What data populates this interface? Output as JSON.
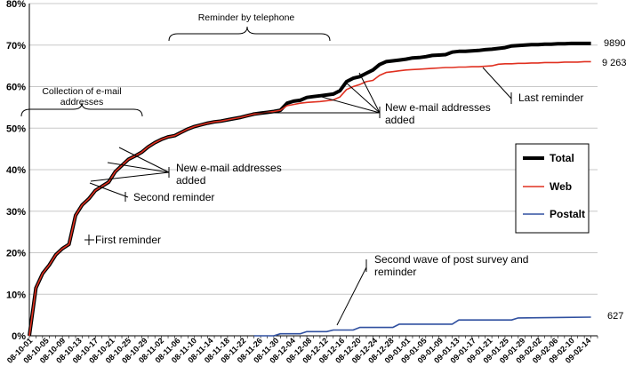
{
  "chart_data": {
    "type": "line",
    "y_ticks": [
      "0%",
      "10%",
      "20%",
      "30%",
      "40%",
      "50%",
      "60%",
      "70%",
      "80%"
    ],
    "ylim": [
      0,
      80
    ],
    "grid": true,
    "x_tick_labels": [
      "08-10-01",
      "08-10-05",
      "08-10-09",
      "08-10-13",
      "08-10-17",
      "08-10-21",
      "08-10-25",
      "08-10-29",
      "08-11-02",
      "08-11-06",
      "08-11-10",
      "08-11-14",
      "08-11-18",
      "08-11-22",
      "08-11-26",
      "08-11-30",
      "08-12-04",
      "08-12-08",
      "08-12-12",
      "08-12-16",
      "08-12-20",
      "08-12-24",
      "08-12-28",
      "09-01-01",
      "09-01-05",
      "09-01-09",
      "09-01-13",
      "09-01-17",
      "09-01-21",
      "09-01-25",
      "09-01-29",
      "09-02-02",
      "09-02-06",
      "09-02-10",
      "09-02-14"
    ],
    "legend_position": "right",
    "series": [
      {
        "name": "Total",
        "color": "#000000",
        "points": [
          [
            0,
            0
          ],
          [
            1,
            11.5
          ],
          [
            2,
            15
          ],
          [
            3,
            17
          ],
          [
            4,
            19.5
          ],
          [
            5,
            21
          ],
          [
            6,
            22
          ],
          [
            7,
            29
          ],
          [
            8,
            31.5
          ],
          [
            9,
            33
          ],
          [
            10,
            35
          ],
          [
            11,
            36
          ],
          [
            12,
            37
          ],
          [
            13,
            39.5
          ],
          [
            14,
            41
          ],
          [
            15,
            42.5
          ],
          [
            16,
            43.3
          ],
          [
            17,
            44.2
          ],
          [
            18,
            45.5
          ],
          [
            19,
            46.5
          ],
          [
            20,
            47.3
          ],
          [
            21,
            47.9
          ],
          [
            22,
            48.2
          ],
          [
            23,
            49
          ],
          [
            24,
            49.8
          ],
          [
            25,
            50.4
          ],
          [
            26,
            50.8
          ],
          [
            27,
            51.2
          ],
          [
            28,
            51.5
          ],
          [
            29,
            51.7
          ],
          [
            30,
            52
          ],
          [
            31,
            52.3
          ],
          [
            32,
            52.6
          ],
          [
            33,
            53
          ],
          [
            34,
            53.4
          ],
          [
            35,
            53.6
          ],
          [
            36,
            53.8
          ],
          [
            37,
            54
          ],
          [
            38,
            54.3
          ],
          [
            39,
            56
          ],
          [
            40,
            56.5
          ],
          [
            41,
            56.7
          ],
          [
            42,
            57.4
          ],
          [
            43,
            57.6
          ],
          [
            44,
            57.8
          ],
          [
            45,
            58
          ],
          [
            46,
            58.2
          ],
          [
            47,
            59
          ],
          [
            48,
            61.2
          ],
          [
            49,
            62
          ],
          [
            50,
            62.4
          ],
          [
            51,
            63.2
          ],
          [
            52,
            64
          ],
          [
            53,
            65.3
          ],
          [
            54,
            66
          ],
          [
            55,
            66.2
          ],
          [
            56,
            66.4
          ],
          [
            57,
            66.6
          ],
          [
            58,
            66.9
          ],
          [
            59,
            67
          ],
          [
            60,
            67.2
          ],
          [
            61,
            67.5
          ],
          [
            62,
            67.6
          ],
          [
            63,
            67.7
          ],
          [
            64,
            68.3
          ],
          [
            65,
            68.5
          ],
          [
            66,
            68.5
          ],
          [
            67,
            68.6
          ],
          [
            68,
            68.7
          ],
          [
            69,
            68.9
          ],
          [
            70,
            69
          ],
          [
            71,
            69.2
          ],
          [
            72,
            69.4
          ],
          [
            73,
            69.8
          ],
          [
            74,
            69.9
          ],
          [
            75,
            70
          ],
          [
            76,
            70.1
          ],
          [
            77,
            70.1
          ],
          [
            78,
            70.2
          ],
          [
            79,
            70.2
          ],
          [
            80,
            70.3
          ],
          [
            81,
            70.3
          ],
          [
            82,
            70.4
          ],
          [
            83,
            70.4
          ],
          [
            84,
            70.4
          ],
          [
            85,
            70.4
          ]
        ]
      },
      {
        "name": "Web",
        "color": "#e03020",
        "points": [
          [
            0,
            0
          ],
          [
            1,
            11.5
          ],
          [
            2,
            15
          ],
          [
            3,
            17
          ],
          [
            4,
            19.5
          ],
          [
            5,
            21
          ],
          [
            6,
            22
          ],
          [
            7,
            29
          ],
          [
            8,
            31.5
          ],
          [
            9,
            33
          ],
          [
            10,
            35
          ],
          [
            11,
            36
          ],
          [
            12,
            37
          ],
          [
            13,
            39.5
          ],
          [
            14,
            41
          ],
          [
            15,
            42.5
          ],
          [
            16,
            43.3
          ],
          [
            17,
            44.2
          ],
          [
            18,
            45.5
          ],
          [
            19,
            46.5
          ],
          [
            20,
            47.3
          ],
          [
            21,
            47.9
          ],
          [
            22,
            48.2
          ],
          [
            23,
            49
          ],
          [
            24,
            49.8
          ],
          [
            25,
            50.4
          ],
          [
            26,
            50.8
          ],
          [
            27,
            51.2
          ],
          [
            28,
            51.5
          ],
          [
            29,
            51.7
          ],
          [
            30,
            52
          ],
          [
            31,
            52.3
          ],
          [
            32,
            52.6
          ],
          [
            33,
            53
          ],
          [
            34,
            53.4
          ],
          [
            35,
            53.6
          ],
          [
            36,
            53.8
          ],
          [
            37,
            54
          ],
          [
            38,
            54.3
          ],
          [
            39,
            55.4
          ],
          [
            40,
            55.7
          ],
          [
            41,
            56
          ],
          [
            42,
            56.2
          ],
          [
            43,
            56.3
          ],
          [
            44,
            56.4
          ],
          [
            45,
            56.6
          ],
          [
            46,
            56.8
          ],
          [
            47,
            57.5
          ],
          [
            48,
            59.3
          ],
          [
            49,
            60
          ],
          [
            50,
            60.5
          ],
          [
            51,
            61.2
          ],
          [
            52,
            61.5
          ],
          [
            53,
            62.7
          ],
          [
            54,
            63.4
          ],
          [
            55,
            63.6
          ],
          [
            56,
            63.8
          ],
          [
            57,
            64
          ],
          [
            58,
            64.1
          ],
          [
            59,
            64.2
          ],
          [
            60,
            64.3
          ],
          [
            61,
            64.4
          ],
          [
            62,
            64.5
          ],
          [
            63,
            64.6
          ],
          [
            64,
            64.6
          ],
          [
            65,
            64.7
          ],
          [
            66,
            64.7
          ],
          [
            67,
            64.8
          ],
          [
            68,
            64.8
          ],
          [
            69,
            64.9
          ],
          [
            70,
            65
          ],
          [
            71,
            65.4
          ],
          [
            72,
            65.5
          ],
          [
            73,
            65.5
          ],
          [
            74,
            65.6
          ],
          [
            75,
            65.6
          ],
          [
            76,
            65.7
          ],
          [
            77,
            65.7
          ],
          [
            78,
            65.8
          ],
          [
            79,
            65.8
          ],
          [
            80,
            65.8
          ],
          [
            81,
            65.9
          ],
          [
            82,
            65.9
          ],
          [
            83,
            65.9
          ],
          [
            84,
            66
          ],
          [
            85,
            66
          ]
        ]
      },
      {
        "name": "Postalt",
        "color": "#3050a0",
        "points": [
          [
            34,
            0
          ],
          [
            37,
            0
          ],
          [
            38,
            0.5
          ],
          [
            41,
            0.5
          ],
          [
            42,
            1
          ],
          [
            45,
            1
          ],
          [
            46,
            1.4
          ],
          [
            49,
            1.4
          ],
          [
            50,
            2
          ],
          [
            55,
            2
          ],
          [
            56,
            2.8
          ],
          [
            64,
            2.8
          ],
          [
            65,
            3.8
          ],
          [
            73,
            3.8
          ],
          [
            74,
            4.3
          ],
          [
            85,
            4.5
          ]
        ]
      }
    ],
    "end_labels": [
      {
        "text": "9890",
        "series": "Total"
      },
      {
        "text": "9 263",
        "series": "Web"
      },
      {
        "text": "627",
        "series": "Postalt"
      }
    ],
    "annotations": {
      "collection_line1": "Collection of e-mail",
      "collection_line2": "addresses",
      "telephone": "Reminder by telephone",
      "first_reminder": "First reminder",
      "second_reminder": "Second reminder",
      "new_email_1a": "New e-mail addresses",
      "new_email_1b": "added",
      "new_email_2a": "New e-mail addresses",
      "new_email_2b": "added",
      "last_reminder": "Last reminder",
      "post_wave_a": "Second wave of post survey and",
      "post_wave_b": "reminder"
    }
  }
}
